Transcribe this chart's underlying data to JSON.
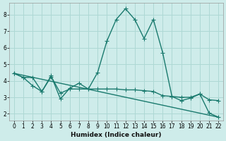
{
  "xlabel": "Humidex (Indice chaleur)",
  "background_color": "#ceecea",
  "grid_color": "#aed8d4",
  "line_color": "#1a7a6e",
  "xlim": [
    -0.5,
    22.5
  ],
  "ylim": [
    1.6,
    8.7
  ],
  "xticks": [
    0,
    1,
    2,
    3,
    4,
    5,
    6,
    7,
    8,
    9,
    10,
    11,
    12,
    13,
    14,
    15,
    16,
    17,
    18,
    19,
    20,
    21,
    22
  ],
  "yticks": [
    2,
    3,
    4,
    5,
    6,
    7,
    8
  ],
  "series": [
    {
      "x": [
        0,
        1,
        2,
        3,
        4,
        5,
        6,
        7,
        8,
        9,
        10,
        11,
        12,
        13,
        14,
        15,
        16,
        17,
        18,
        19,
        20,
        21,
        22
      ],
      "y": [
        4.45,
        4.2,
        4.2,
        3.35,
        4.3,
        2.9,
        3.55,
        3.85,
        3.5,
        4.5,
        6.4,
        7.7,
        8.35,
        7.7,
        6.55,
        7.7,
        5.7,
        3.05,
        2.8,
        2.95,
        3.2,
        2.05,
        1.8
      ],
      "marker": "+",
      "linestyle": "-",
      "linewidth": 1.0,
      "markersize": 4
    },
    {
      "x": [
        0,
        1,
        2,
        3,
        4,
        5,
        6,
        7,
        8,
        9,
        10,
        11,
        12,
        13,
        14,
        15,
        16,
        17,
        18,
        19,
        20,
        21,
        22
      ],
      "y": [
        4.45,
        4.2,
        3.7,
        3.35,
        4.25,
        3.25,
        3.5,
        3.5,
        3.5,
        3.5,
        3.5,
        3.5,
        3.45,
        3.45,
        3.4,
        3.35,
        3.1,
        3.05,
        3.0,
        3.0,
        3.2,
        2.85,
        2.8
      ],
      "marker": "+",
      "linestyle": "-",
      "linewidth": 1.0,
      "markersize": 4
    },
    {
      "x": [
        0,
        22
      ],
      "y": [
        4.45,
        1.8
      ],
      "marker": null,
      "linestyle": "-",
      "linewidth": 1.0,
      "markersize": 0
    }
  ]
}
